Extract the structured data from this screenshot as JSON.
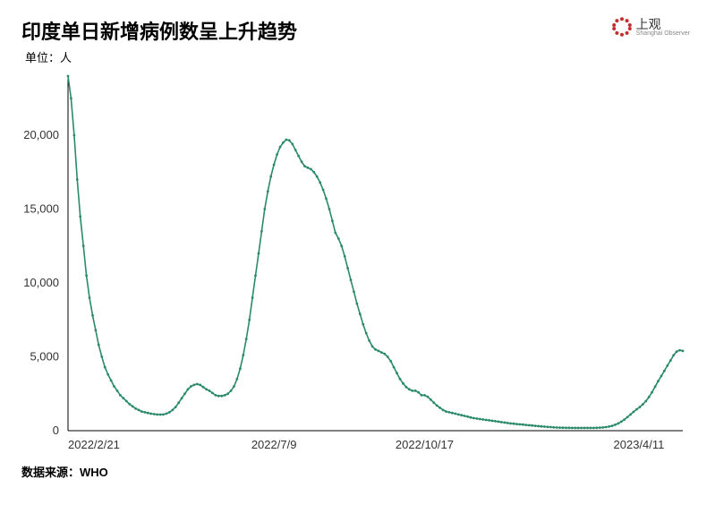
{
  "title": "印度单日新增病例数呈上升趋势",
  "title_fontsize": 22,
  "unit_label": "单位：人",
  "unit_fontsize": 13,
  "source": "数据来源：WHO",
  "source_fontsize": 13,
  "logo": {
    "main": "上观",
    "sub": "Shanghai Observer",
    "main_fontsize": 14,
    "sub_fontsize": 7
  },
  "chart": {
    "type": "line",
    "background_color": "#ffffff",
    "line_color": "#2a8a6a",
    "marker_color": "#2a8a6a",
    "marker_radius": 1.4,
    "axis_color": "#000000",
    "tick_fontsize": 13,
    "ylim": [
      0,
      24000
    ],
    "yticks": [
      0,
      5000,
      10000,
      15000,
      20000
    ],
    "ytick_labels": [
      "0",
      "5,000",
      "10,000",
      "15,000",
      "20,000"
    ],
    "x_domain": [
      0,
      200
    ],
    "xticks": [
      0,
      67,
      116,
      194
    ],
    "xtick_labels": [
      "2022/2/21",
      "2022/7/9",
      "2022/10/17",
      "2023/4/11"
    ],
    "y_values": [
      24000,
      22500,
      20000,
      17000,
      14500,
      12500,
      10500,
      9000,
      7800,
      6800,
      5800,
      5000,
      4300,
      3800,
      3400,
      3000,
      2700,
      2400,
      2200,
      2000,
      1800,
      1650,
      1500,
      1400,
      1300,
      1250,
      1200,
      1150,
      1120,
      1100,
      1090,
      1100,
      1150,
      1250,
      1400,
      1600,
      1900,
      2200,
      2500,
      2800,
      3000,
      3100,
      3150,
      3100,
      2950,
      2800,
      2700,
      2550,
      2400,
      2350,
      2350,
      2400,
      2500,
      2700,
      3000,
      3500,
      4200,
      5100,
      6200,
      7500,
      9000,
      10500,
      12000,
      13500,
      15000,
      16200,
      17200,
      18000,
      18700,
      19200,
      19500,
      19700,
      19650,
      19400,
      19000,
      18600,
      18200,
      17900,
      17800,
      17700,
      17500,
      17200,
      16800,
      16300,
      15700,
      15000,
      14200,
      13400,
      13000,
      12500,
      11800,
      11000,
      10200,
      9400,
      8600,
      7900,
      7200,
      6600,
      6100,
      5700,
      5500,
      5400,
      5300,
      5200,
      5000,
      4700,
      4300,
      3900,
      3500,
      3200,
      2950,
      2800,
      2700,
      2700,
      2600,
      2400,
      2400,
      2300,
      2100,
      1900,
      1700,
      1550,
      1400,
      1300,
      1250,
      1200,
      1150,
      1100,
      1050,
      1000,
      950,
      900,
      850,
      820,
      790,
      760,
      730,
      700,
      670,
      640,
      610,
      580,
      550,
      520,
      490,
      470,
      450,
      430,
      410,
      390,
      370,
      350,
      330,
      310,
      290,
      270,
      255,
      240,
      225,
      215,
      205,
      200,
      195,
      192,
      190,
      188,
      187,
      186,
      186,
      187,
      188,
      190,
      195,
      205,
      220,
      245,
      280,
      330,
      400,
      490,
      610,
      750,
      920,
      1100,
      1280,
      1450,
      1600,
      1780,
      2000,
      2280,
      2600,
      2980,
      3350,
      3700,
      4050,
      4400,
      4750,
      5100,
      5350,
      5450,
      5400
    ]
  }
}
